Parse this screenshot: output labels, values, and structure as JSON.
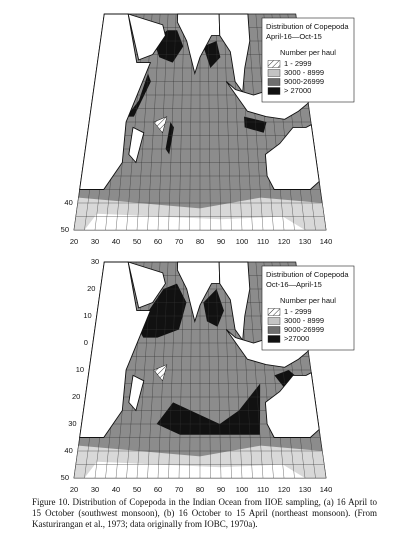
{
  "panels": [
    {
      "legend_title": "Distribution of Copepoda",
      "period": "April-16—Oct-15",
      "legend_heading": "Number per haul",
      "legend_entries": [
        "1 - 2999",
        "3000 - 8999",
        "9000-26999",
        "> 27000"
      ],
      "lat_labels": [
        "40",
        "50"
      ],
      "lon_labels": [
        "20",
        "30",
        "40",
        "50",
        "60",
        "70",
        "80",
        "90",
        "100",
        "110",
        "120",
        "130",
        "140"
      ]
    },
    {
      "legend_title": "Distribution of Copepoda",
      "period": "Oct-16—April-15",
      "legend_heading": "Number per haul",
      "legend_entries": [
        "1 - 2999",
        "3000 - 8999",
        "9000-26999",
        ">27000"
      ],
      "lat_labels": [
        "30",
        "20",
        "10",
        "0",
        "10",
        "20",
        "30",
        "40",
        "50"
      ],
      "lon_labels": [
        "20",
        "30",
        "40",
        "50",
        "60",
        "70",
        "80",
        "90",
        "100",
        "110",
        "120",
        "130",
        "140"
      ]
    }
  ],
  "caption": "Figure 10.  Distribution of Copepoda in the Indian Ocean from IIOE sampling, (a) 16 April to 15 October (southwest monsoon), (b) 16 October to 15 April (northeast monsoon). (From Kasturirangan et al., 1973; data originally from IOBC, 1970a)."
}
